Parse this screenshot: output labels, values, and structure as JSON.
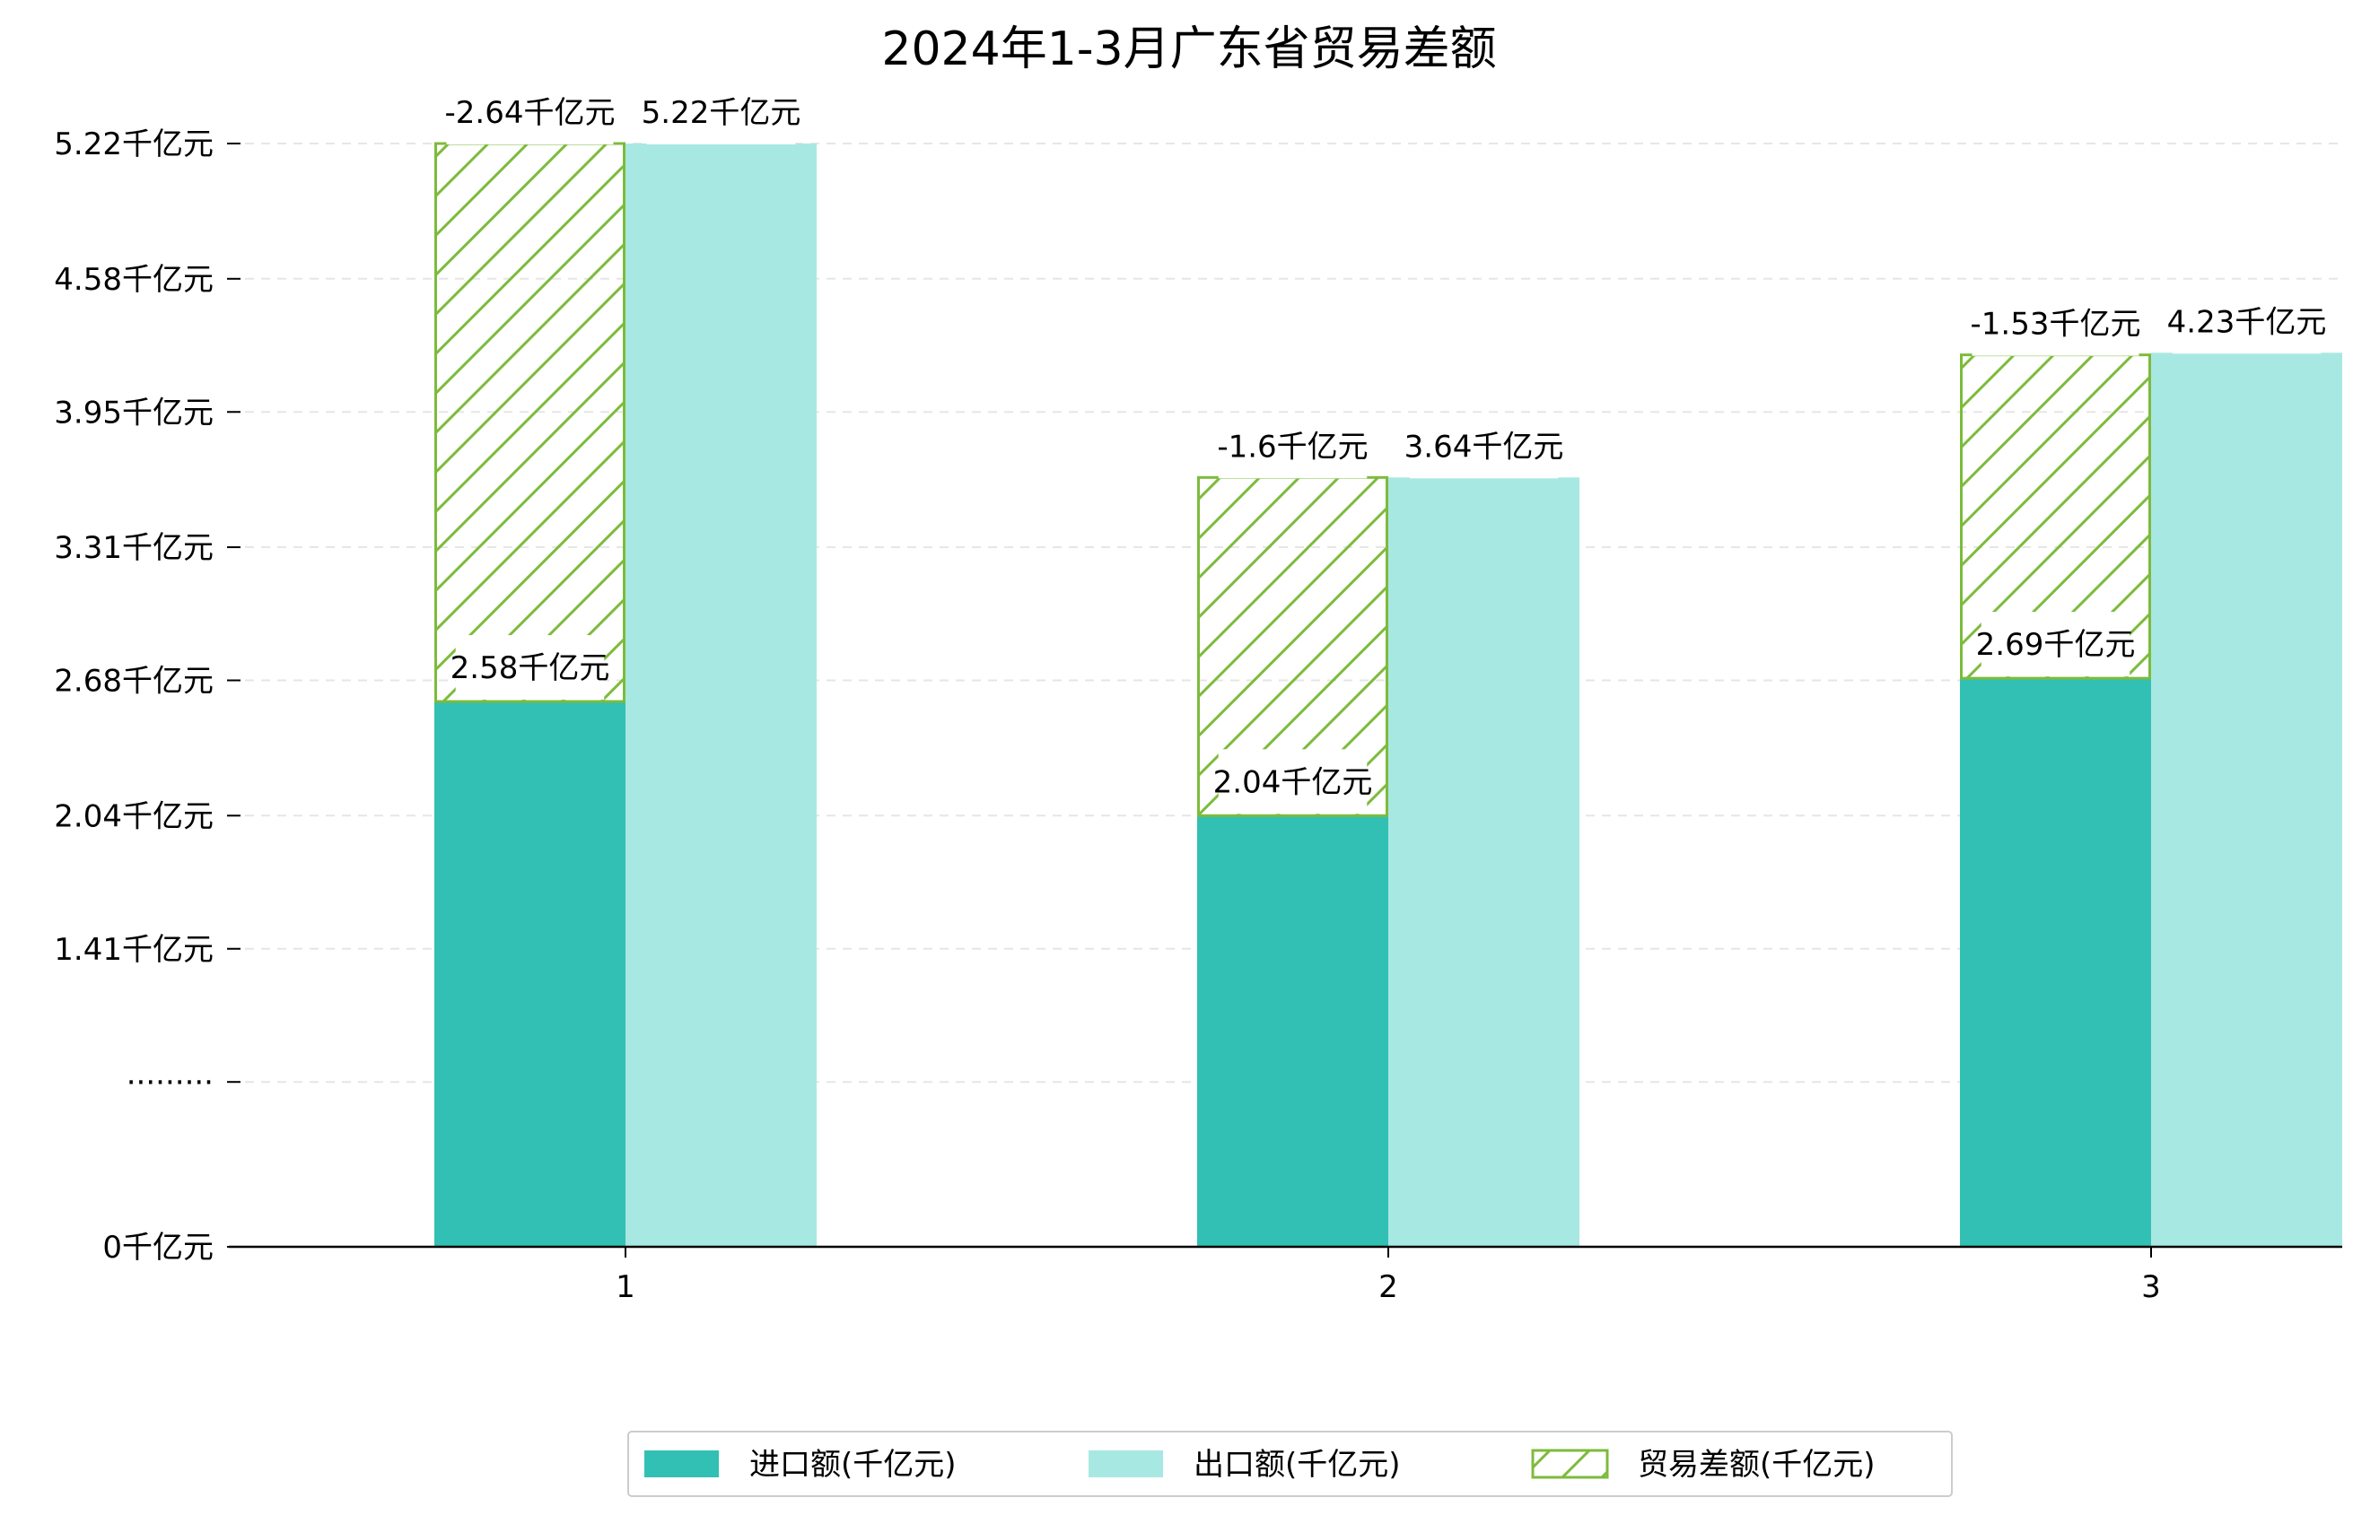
{
  "chart_data": {
    "type": "bar",
    "title": "2024年1-3月广东省贸易差额",
    "categories": [
      "1",
      "2",
      "3"
    ],
    "series": [
      {
        "name": "进口额(千亿元)",
        "values": [
          2.58,
          2.04,
          2.69
        ],
        "labels": [
          "2.58千亿元",
          "2.04千亿元",
          "2.69千亿元"
        ],
        "color": "#32c0b4"
      },
      {
        "name": "出口额(千亿元)",
        "values": [
          5.22,
          3.64,
          4.23
        ],
        "labels": [
          "5.22千亿元",
          "3.64千亿元",
          "4.23千亿元"
        ],
        "color": "#a8e8e2"
      },
      {
        "name": "贸易差额(千亿元)",
        "values": [
          -2.64,
          -1.6,
          -1.53
        ],
        "labels": [
          "-2.64千亿元",
          "-1.6千亿元",
          "-1.53千亿元"
        ],
        "color": "#7dbb3c",
        "style": "hatched, stacked on 进口额"
      }
    ],
    "y_ticks": [
      0,
      0.78,
      1.41,
      2.04,
      2.68,
      3.31,
      3.95,
      4.58,
      5.22
    ],
    "y_tick_labels": [
      "0千亿元",
      "·········",
      "1.41千亿元",
      "2.04千亿元",
      "2.68千亿元",
      "3.31千亿元",
      "3.95千亿元",
      "4.58千亿元",
      "5.22千亿元"
    ],
    "ylim": [
      0,
      5.22
    ],
    "xlabel": "",
    "ylabel": "",
    "grid": "horizontal dashed",
    "legend_position": "bottom-center"
  }
}
